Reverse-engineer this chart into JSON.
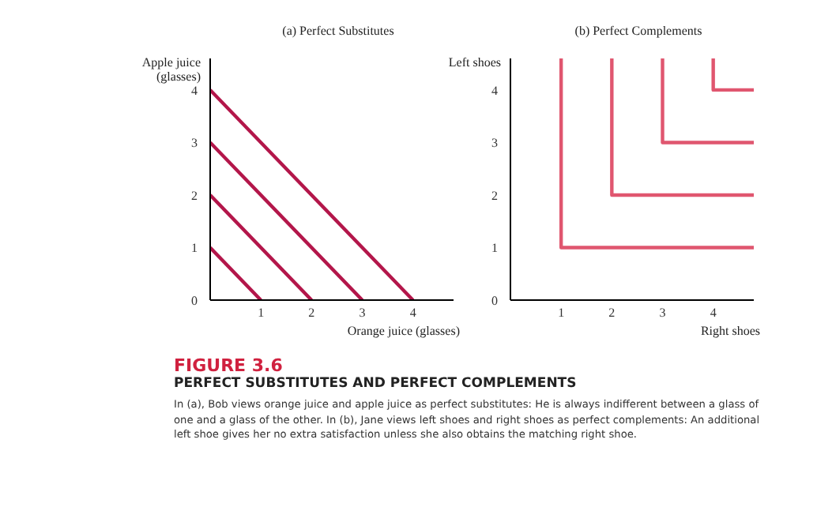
{
  "chart_data": [
    {
      "type": "line",
      "title": "(a) Perfect Substitutes",
      "xlabel": "Orange juice  (glasses)",
      "ylabel": "Apple juice (glasses)",
      "xlim": [
        0,
        4.8
      ],
      "ylim": [
        0,
        4.6
      ],
      "xticks": [
        1,
        2,
        3,
        4
      ],
      "yticks": [
        0,
        1,
        2,
        3,
        4
      ],
      "line_style": "solid",
      "series": [
        {
          "color": "#b3164a",
          "x": [
            0,
            1
          ],
          "values": [
            1,
            0
          ]
        },
        {
          "color": "#b3164a",
          "x": [
            0,
            2
          ],
          "values": [
            2,
            0
          ]
        },
        {
          "color": "#b3164a",
          "x": [
            0,
            3
          ],
          "values": [
            3,
            0
          ]
        },
        {
          "color": "#b3164a",
          "x": [
            0,
            4
          ],
          "values": [
            4,
            0
          ]
        }
      ]
    },
    {
      "type": "line",
      "title": "(b) Perfect Complements",
      "xlabel": "Right shoes",
      "ylabel": "Left shoes",
      "xlim": [
        0,
        4.8
      ],
      "ylim": [
        0,
        4.6
      ],
      "xticks": [
        1,
        2,
        3,
        4
      ],
      "yticks": [
        0,
        1,
        2,
        3,
        4
      ],
      "line_style": "solid",
      "series": [
        {
          "color": "#e0566f",
          "x": [
            1,
            1,
            4.8
          ],
          "values": [
            4.6,
            1,
            1
          ]
        },
        {
          "color": "#e0566f",
          "x": [
            2,
            2,
            4.8
          ],
          "values": [
            4.6,
            2,
            2
          ]
        },
        {
          "color": "#e0566f",
          "x": [
            3,
            3,
            4.8
          ],
          "values": [
            4.6,
            3,
            3
          ]
        },
        {
          "color": "#e0566f",
          "x": [
            4,
            4,
            4.8
          ],
          "values": [
            4.6,
            4,
            4
          ]
        }
      ]
    },
    {
      "type": "other",
      "title": "FIGURE 3.6",
      "subtitle": "PERFECT SUBSTITUTES AND PERFECT COMPLEMENTS",
      "annotations": [
        "In (a), Bob views orange juice and apple juice as perfect substitutes: He is always indifferent between a glass of one and a glass of the other. In (b), Jane views left shoes and right shoes as perfect complements: An additional left shoe gives her no extra satisfaction unless she also obtains the matching right shoe."
      ]
    }
  ]
}
